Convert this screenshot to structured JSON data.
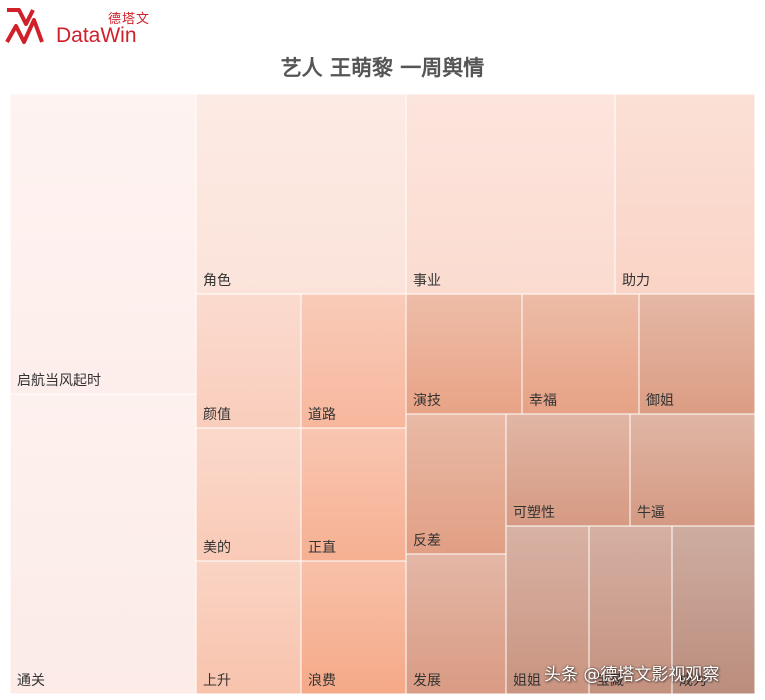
{
  "header": {
    "logo_text_cn": "德塔文",
    "logo_text_en": "DataWin",
    "logo_color": "#d0202a"
  },
  "watermark": "头条 @德塔文影视观察",
  "chart_data": {
    "type": "treemap",
    "title": "艺人 王萌黎 一周舆情",
    "colors": [
      "#fdf1ef",
      "#f5a988",
      "#b58a7c"
    ],
    "cells": [
      {
        "label": "启航当风起时",
        "shade": 0.02
      },
      {
        "label": "通关",
        "shade": 0.04
      },
      {
        "label": "角色",
        "shade": 0.1
      },
      {
        "label": "事业",
        "shade": 0.15
      },
      {
        "label": "助力",
        "shade": 0.2
      },
      {
        "label": "颜值",
        "shade": 0.25
      },
      {
        "label": "道路",
        "shade": 0.4
      },
      {
        "label": "美的",
        "shade": 0.27
      },
      {
        "label": "正直",
        "shade": 0.45
      },
      {
        "label": "上升",
        "shade": 0.32
      },
      {
        "label": "浪费",
        "shade": 0.5
      },
      {
        "label": "演技",
        "shade": 0.6
      },
      {
        "label": "幸福",
        "shade": 0.62
      },
      {
        "label": "御姐",
        "shade": 0.7
      },
      {
        "label": "反差",
        "shade": 0.66
      },
      {
        "label": "可塑性",
        "shade": 0.74
      },
      {
        "label": "牛逼",
        "shade": 0.76
      },
      {
        "label": "发展",
        "shade": 0.72
      },
      {
        "label": "姐姐",
        "shade": 0.84
      },
      {
        "label": "宝藏",
        "shade": 0.88
      },
      {
        "label": "成为",
        "shade": 0.95
      }
    ]
  }
}
